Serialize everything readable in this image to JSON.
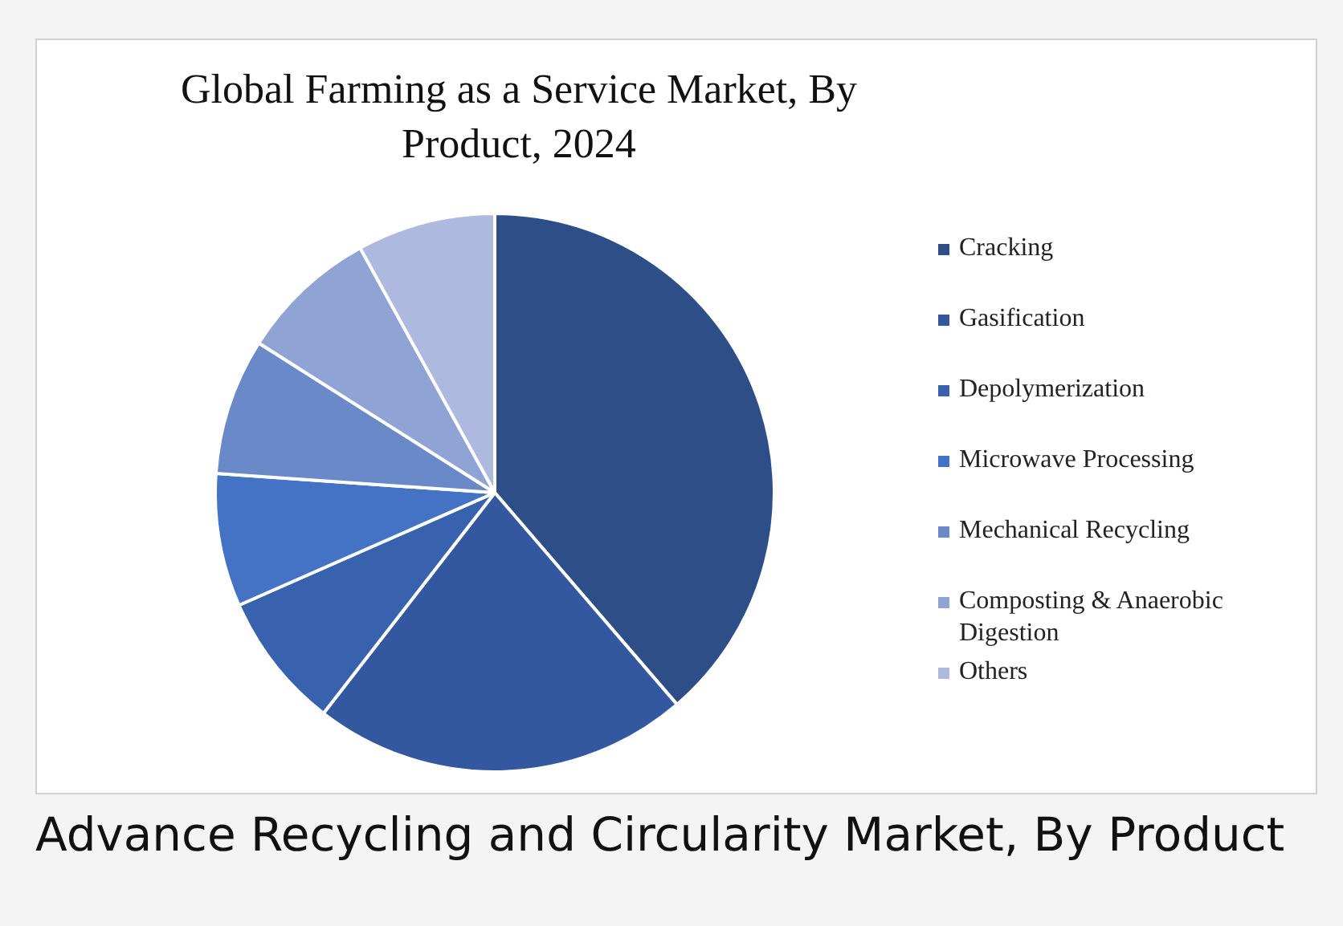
{
  "chart_data": {
    "type": "pie",
    "title": "Global Farming as a Service Market, By Product, 2024",
    "categories": [
      "Cracking",
      "Gasification",
      "Depolymerization",
      "Microwave Processing",
      "Mechanical Recycling",
      "Composting & Anaerobic Digestion",
      "Others"
    ],
    "values": [
      38.7,
      21.8,
      7.9,
      7.7,
      7.9,
      8.0,
      8.0
    ],
    "colors": [
      "#2e4e87",
      "#3358a0",
      "#3862ad",
      "#4472c4",
      "#6a89c8",
      "#8fa3d4",
      "#adb9de"
    ],
    "legend": "right",
    "annotations": [
      "Advance Recycling and Circularity Market, By Product"
    ]
  }
}
